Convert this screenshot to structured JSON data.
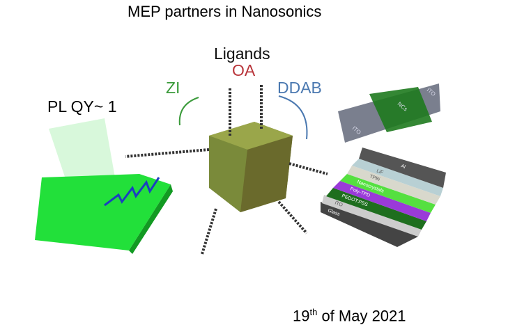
{
  "slide": {
    "title": "MEP partners in Nanosonics",
    "date_day": "19",
    "date_suffix": "th",
    "date_rest": " of May 2021"
  },
  "illustration": {
    "ligands_label": "Ligands",
    "ligand_oa": "OA",
    "ligand_zi": "ZI",
    "ligand_ddab": "DDAB",
    "plqy_label": "PL QY~ 1",
    "colors": {
      "oa": "#b8343a",
      "zi": "#3a9a3a",
      "ddab": "#4a78b0",
      "film": "#22e03a"
    },
    "device_top_labels": [
      "ITO",
      "NCs",
      "ITO"
    ],
    "device_layers": [
      "Al",
      "LiF",
      "TPBi",
      "Nanocrystals",
      "Poly-TPD",
      "PEDOT:PSS",
      "ITO",
      "Glass"
    ]
  }
}
